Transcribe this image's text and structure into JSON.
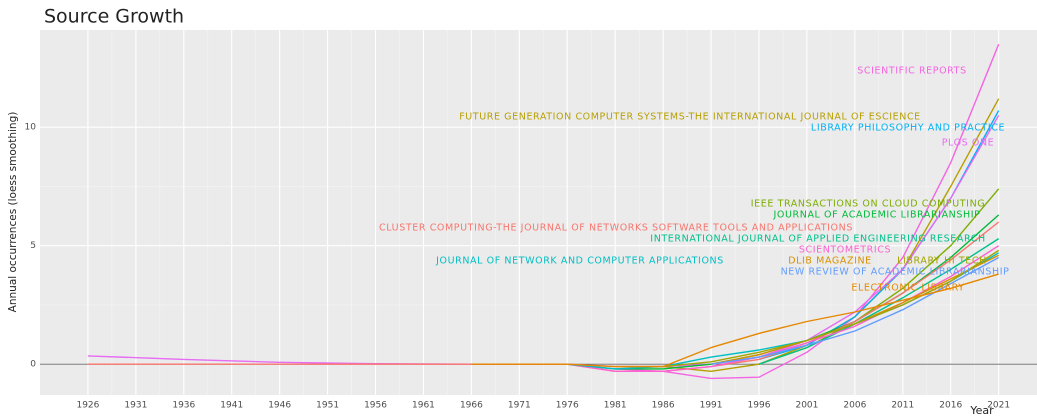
{
  "chart_data": {
    "type": "line",
    "title": "Source Growth",
    "x_label": "Year",
    "y_label": "Annual occurrences (loess smoothing)",
    "x": [
      1926,
      1936,
      1946,
      1956,
      1966,
      1976,
      1981,
      1986,
      1991,
      1996,
      2001,
      2006,
      2011,
      2016,
      2021
    ],
    "xlim": [
      1921,
      2025
    ],
    "xticks": [
      1926,
      1931,
      1936,
      1941,
      1946,
      1951,
      1956,
      1961,
      1966,
      1971,
      1976,
      1981,
      1986,
      1991,
      1996,
      2001,
      2006,
      2011,
      2016,
      2021
    ],
    "ylim": [
      -1.3,
      14.1
    ],
    "yticks": [
      0,
      5,
      10
    ],
    "grid": true,
    "reference_line": 0,
    "series": [
      {
        "name": "SCIENTIFIC REPORTS",
        "color": "#f564e3",
        "values": [
          null,
          null,
          null,
          null,
          null,
          null,
          -0.2,
          -0.3,
          -0.6,
          -0.55,
          0.5,
          2,
          4.5,
          8.5,
          13.5
        ]
      },
      {
        "name": "FUTURE GENERATION COMPUTER SYSTEMS-THE INTERNATIONAL JOURNAL OF ESCIENCE",
        "color": "#b79f00",
        "values": [
          null,
          null,
          null,
          null,
          null,
          null,
          null,
          -0.1,
          -0.3,
          0,
          0.8,
          2,
          4,
          7.5,
          11.2
        ]
      },
      {
        "name": "LIBRARY PHILOSOPHY AND PRACTICE",
        "color": "#00b0f6",
        "values": [
          null,
          null,
          null,
          null,
          null,
          null,
          null,
          null,
          null,
          0.2,
          0.8,
          2,
          4,
          7,
          10.7
        ]
      },
      {
        "name": "PLOS ONE",
        "color": "#e76bf3",
        "values": [
          0.35,
          0.2,
          0.08,
          0.02,
          0,
          0,
          -0.1,
          -0.1,
          0,
          0.3,
          1,
          2.2,
          4,
          7,
          10.5
        ]
      },
      {
        "name": "IEEE TRANSACTIONS ON CLOUD COMPUTING",
        "color": "#7cae00",
        "values": [
          null,
          null,
          null,
          null,
          null,
          null,
          null,
          null,
          null,
          0,
          0.7,
          1.8,
          3.2,
          5,
          7.4
        ]
      },
      {
        "name": "JOURNAL OF ACADEMIC LIBRARIANSHIP",
        "color": "#00ba38",
        "values": [
          null,
          null,
          null,
          null,
          0,
          0,
          -0.2,
          -0.2,
          0,
          0.4,
          1,
          1.8,
          3,
          4.5,
          6.3
        ]
      },
      {
        "name": "CLUSTER COMPUTING-THE JOURNAL OF NETWORKS SOFTWARE TOOLS AND APPLICATIONS",
        "color": "#f8766d",
        "values": [
          0,
          0,
          0,
          0,
          0,
          0,
          -0.3,
          -0.3,
          -0.1,
          0.2,
          0.9,
          1.8,
          3,
          4.4,
          6
        ]
      },
      {
        "name": "INTERNATIONAL JOURNAL OF APPLIED ENGINEERING RESEARCH",
        "color": "#00c08b",
        "values": [
          null,
          null,
          null,
          null,
          null,
          null,
          null,
          null,
          null,
          0,
          0.7,
          1.7,
          2.8,
          4,
          5.3
        ]
      },
      {
        "name": "SCIENTOMETRICS",
        "color": "#fd61d1",
        "values": [
          null,
          null,
          null,
          null,
          null,
          0,
          -0.3,
          -0.3,
          -0.1,
          0.3,
          0.9,
          1.6,
          2.6,
          3.7,
          5
        ]
      },
      {
        "name": "JOURNAL OF NETWORK AND COMPUTER APPLICATIONS",
        "color": "#00bfc4",
        "values": [
          null,
          null,
          null,
          null,
          null,
          0,
          -0.2,
          -0.1,
          0.3,
          0.6,
          1,
          1.7,
          2.5,
          3.5,
          4.7
        ]
      },
      {
        "name": "DLIB MAGAZINE",
        "color": "#d89000",
        "values": [
          null,
          null,
          null,
          null,
          null,
          null,
          null,
          null,
          0,
          0.4,
          1,
          1.7,
          2.6,
          3.6,
          4.6
        ]
      },
      {
        "name": "LIBRARY HI TECH",
        "color": "#a3a500",
        "values": [
          null,
          null,
          null,
          null,
          null,
          null,
          -0.1,
          -0.1,
          0.1,
          0.5,
          1,
          1.7,
          2.5,
          3.5,
          4.8
        ]
      },
      {
        "name": "NEW REVIEW OF ACADEMIC LIBRARIANSHIP",
        "color": "#619cff",
        "values": [
          null,
          null,
          null,
          null,
          null,
          null,
          null,
          null,
          0,
          0.3,
          0.8,
          1.4,
          2.3,
          3.4,
          4.5
        ]
      },
      {
        "name": "ELECTRONIC LIBRARY",
        "color": "#e58700",
        "values": [
          null,
          null,
          null,
          null,
          0,
          0,
          -0.1,
          -0.1,
          0.7,
          1.3,
          1.8,
          2.2,
          2.7,
          3.2,
          3.8
        ]
      }
    ]
  }
}
